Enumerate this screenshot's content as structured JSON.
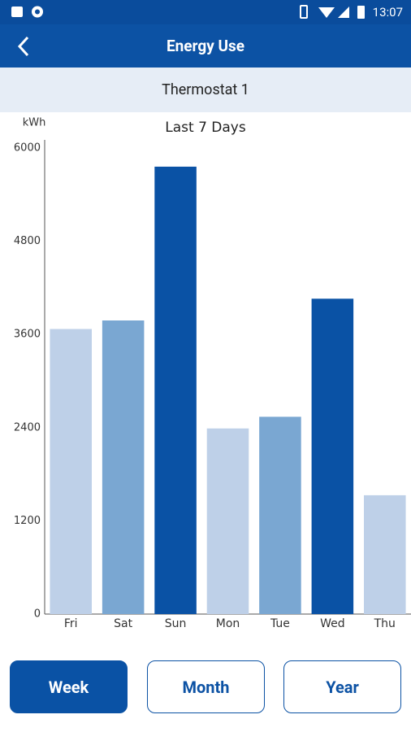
{
  "status_bar": {
    "time": "13:07"
  },
  "app_bar": {
    "title": "Energy Use"
  },
  "device": "Thermostat 1",
  "chart_data": {
    "type": "bar",
    "title": "Last 7 Days",
    "y_label": "kWh",
    "categories": [
      "Fri",
      "Sat",
      "Sun",
      "Mon",
      "Tue",
      "Wed",
      "Thu"
    ],
    "values": [
      3670,
      3780,
      5760,
      2390,
      2540,
      4060,
      1530
    ],
    "colors": [
      "#bed0e8",
      "#7aa7d2",
      "#0a52a5",
      "#bed0e8",
      "#7aa7d2",
      "#0a52a5",
      "#bed0e8"
    ],
    "ylim": [
      0,
      6000
    ],
    "yticks": [
      0,
      1200,
      2400,
      3600,
      4800,
      6000
    ],
    "grid": false
  },
  "buttons": [
    {
      "label": "Week",
      "selected": true
    },
    {
      "label": "Month",
      "selected": false
    },
    {
      "label": "Year",
      "selected": false
    }
  ]
}
